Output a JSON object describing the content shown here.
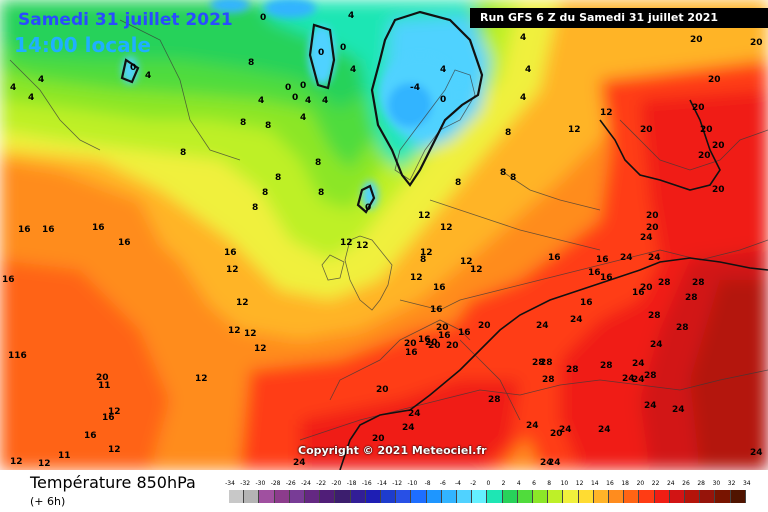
{
  "header": {
    "date": "Samedi 31 juillet 2021",
    "time": "14:00 locale",
    "run": "Run GFS 6 Z du Samedi 31 juillet 2021"
  },
  "copyright": "Copyright © 2021 Meteociel.fr",
  "legend": {
    "title": "Température 850hPa",
    "subtitle": "(+ 6h)",
    "ticks": [
      "-34",
      "-32",
      "-30",
      "-28",
      "-26",
      "-24",
      "-22",
      "-20",
      "-18",
      "-16",
      "-14",
      "-12",
      "-10",
      "-8",
      "-6",
      "-4",
      "-2",
      "0",
      "2",
      "4",
      "6",
      "8",
      "10",
      "12",
      "14",
      "16",
      "18",
      "20",
      "22",
      "24",
      "26",
      "28",
      "30",
      "32",
      "34"
    ],
    "colors": [
      "#c8c8c8",
      "#b4b4b4",
      "#a050a0",
      "#8c3c8c",
      "#783c96",
      "#642882",
      "#501e78",
      "#3c1e6e",
      "#321e96",
      "#1e1eb4",
      "#1e3ccd",
      "#2850e6",
      "#1e6eff",
      "#1e96ff",
      "#32b4ff",
      "#50d2ff",
      "#64f0ff",
      "#1ee6b4",
      "#28d25a",
      "#50dc3c",
      "#8ce628",
      "#bef028",
      "#f0f03c",
      "#ffdc32",
      "#ffb428",
      "#ff8c1e",
      "#ff6414",
      "#ff3c14",
      "#f01e14",
      "#d21414",
      "#b4140a",
      "#96140a",
      "#781400",
      "#501400",
      "#281400"
    ]
  },
  "map_labels": [
    {
      "t": "0"
    },
    {
      "t": "4"
    },
    {
      "t": "0"
    },
    {
      "t": "4"
    },
    {
      "t": "4"
    },
    {
      "t": "4"
    },
    {
      "t": "0"
    },
    {
      "t": "4"
    },
    {
      "t": "8"
    },
    {
      "t": "0"
    },
    {
      "t": "4"
    },
    {
      "t": "0"
    },
    {
      "t": "4"
    },
    {
      "t": "4"
    },
    {
      "t": "4"
    },
    {
      "t": "0"
    },
    {
      "t": "0"
    },
    {
      "t": "4"
    },
    {
      "t": "4"
    },
    {
      "t": "4"
    },
    {
      "t": "4"
    },
    {
      "t": "0"
    },
    {
      "t": "-4"
    },
    {
      "t": "0"
    },
    {
      "t": "4"
    },
    {
      "t": "8"
    },
    {
      "t": "8"
    },
    {
      "t": "8"
    },
    {
      "t": "8"
    },
    {
      "t": "8"
    },
    {
      "t": "8"
    },
    {
      "t": "8"
    },
    {
      "t": "8"
    },
    {
      "t": "8"
    },
    {
      "t": "8"
    },
    {
      "t": "8"
    },
    {
      "t": "8"
    },
    {
      "t": "8"
    },
    {
      "t": "12"
    },
    {
      "t": "12"
    },
    {
      "t": "12"
    },
    {
      "t": "12"
    },
    {
      "t": "12"
    },
    {
      "t": "12"
    },
    {
      "t": "12"
    },
    {
      "t": "12"
    },
    {
      "t": "12"
    },
    {
      "t": "12"
    },
    {
      "t": "12"
    },
    {
      "t": "12"
    },
    {
      "t": "12"
    },
    {
      "t": "12"
    },
    {
      "t": "12"
    },
    {
      "t": "12"
    },
    {
      "t": "12"
    },
    {
      "t": "12"
    },
    {
      "t": "116"
    },
    {
      "t": "16"
    },
    {
      "t": "16"
    },
    {
      "t": "16"
    },
    {
      "t": "16"
    },
    {
      "t": "16"
    },
    {
      "t": "16"
    },
    {
      "t": "16"
    },
    {
      "t": "16"
    },
    {
      "t": "16"
    },
    {
      "t": "16"
    },
    {
      "t": "16"
    },
    {
      "t": "16"
    },
    {
      "t": "16"
    },
    {
      "t": "16"
    },
    {
      "t": "16"
    },
    {
      "t": "16"
    },
    {
      "t": "16"
    },
    {
      "t": "16"
    },
    {
      "t": "20"
    },
    {
      "t": "20"
    },
    {
      "t": "20"
    },
    {
      "t": "20"
    },
    {
      "t": "20"
    },
    {
      "t": "20"
    },
    {
      "t": "20"
    },
    {
      "t": "20"
    },
    {
      "t": "20"
    },
    {
      "t": "20"
    },
    {
      "t": "20"
    },
    {
      "t": "20"
    },
    {
      "t": "20"
    },
    {
      "t": "20"
    },
    {
      "t": "20"
    },
    {
      "t": "20"
    },
    {
      "t": "24"
    },
    {
      "t": "24"
    },
    {
      "t": "24"
    },
    {
      "t": "24"
    },
    {
      "t": "24"
    },
    {
      "t": "24"
    },
    {
      "t": "24"
    },
    {
      "t": "24"
    },
    {
      "t": "24"
    },
    {
      "t": "24"
    },
    {
      "t": "24"
    },
    {
      "t": "24"
    },
    {
      "t": "24"
    },
    {
      "t": "24"
    },
    {
      "t": "24"
    },
    {
      "t": "24"
    },
    {
      "t": "28"
    },
    {
      "t": "28"
    },
    {
      "t": "28"
    },
    {
      "t": "28"
    },
    {
      "t": "28"
    },
    {
      "t": "28"
    },
    {
      "t": "28"
    },
    {
      "t": "28"
    },
    {
      "t": "28"
    },
    {
      "t": "28"
    },
    {
      "t": "28"
    },
    {
      "t": "28"
    },
    {
      "t": "24"
    },
    {
      "t": "24"
    },
    {
      "t": "24"
    },
    {
      "t": "20"
    },
    {
      "t": "20"
    },
    {
      "t": "20"
    },
    {
      "t": "11"
    },
    {
      "t": "16"
    },
    {
      "t": "16"
    },
    {
      "t": "12"
    },
    {
      "t": "11"
    },
    {
      "t": "12"
    },
    {
      "t": "20"
    },
    {
      "t": "20"
    },
    {
      "t": "20"
    },
    {
      "t": "24"
    }
  ]
}
